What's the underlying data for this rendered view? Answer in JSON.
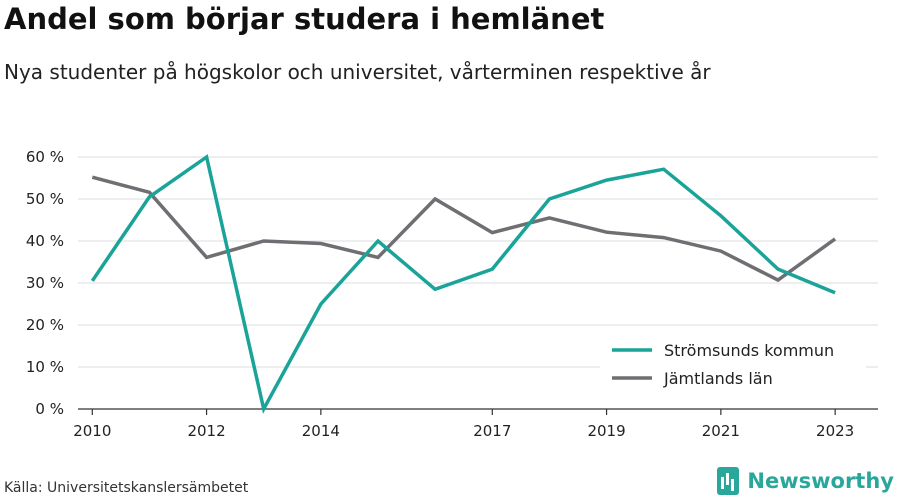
{
  "title": "Andel som börjar studera i hemlänet",
  "subtitle": "Nya studenter på högskolor och universitet, vårterminen respektive år",
  "source": "Källa: Universitetskanslersämbetet",
  "brand": "Newsworthy",
  "colors": {
    "series_1": "#1aa398",
    "series_2": "#6f6f73",
    "brand": "#2aa79b",
    "grid": "#dddddd"
  },
  "chart_data": {
    "type": "line",
    "x": [
      2010,
      2011,
      2012,
      2013,
      2014,
      2015,
      2016,
      2017,
      2018,
      2019,
      2020,
      2021,
      2022,
      2023
    ],
    "x_tick_labels": [
      "2010",
      "2012",
      "2014",
      "2017",
      "2019",
      "2021",
      "2023"
    ],
    "x_tick_values": [
      2010,
      2012,
      2014,
      2017,
      2019,
      2021,
      2023
    ],
    "y_tick_labels": [
      "0 %",
      "10 %",
      "20 %",
      "30 %",
      "40 %",
      "50 %",
      "60 %"
    ],
    "y_tick_values": [
      0,
      10,
      20,
      30,
      40,
      50,
      60
    ],
    "ylim": [
      0,
      60
    ],
    "grid": true,
    "legend_position": "bottom-right",
    "series": [
      {
        "name": "Strömsunds kommun",
        "color": "#1aa398",
        "values": [
          30.5,
          50.5,
          60,
          0,
          25,
          40,
          28.5,
          33.3,
          50,
          54.5,
          57.1,
          46,
          33.3,
          27.7
        ]
      },
      {
        "name": "Jämtlands län",
        "color": "#6f6f73",
        "values": [
          55.2,
          51.6,
          36.1,
          40,
          39.4,
          36.1,
          50,
          42,
          45.5,
          42.1,
          40.8,
          37.6,
          30.7,
          40.5
        ]
      }
    ]
  }
}
